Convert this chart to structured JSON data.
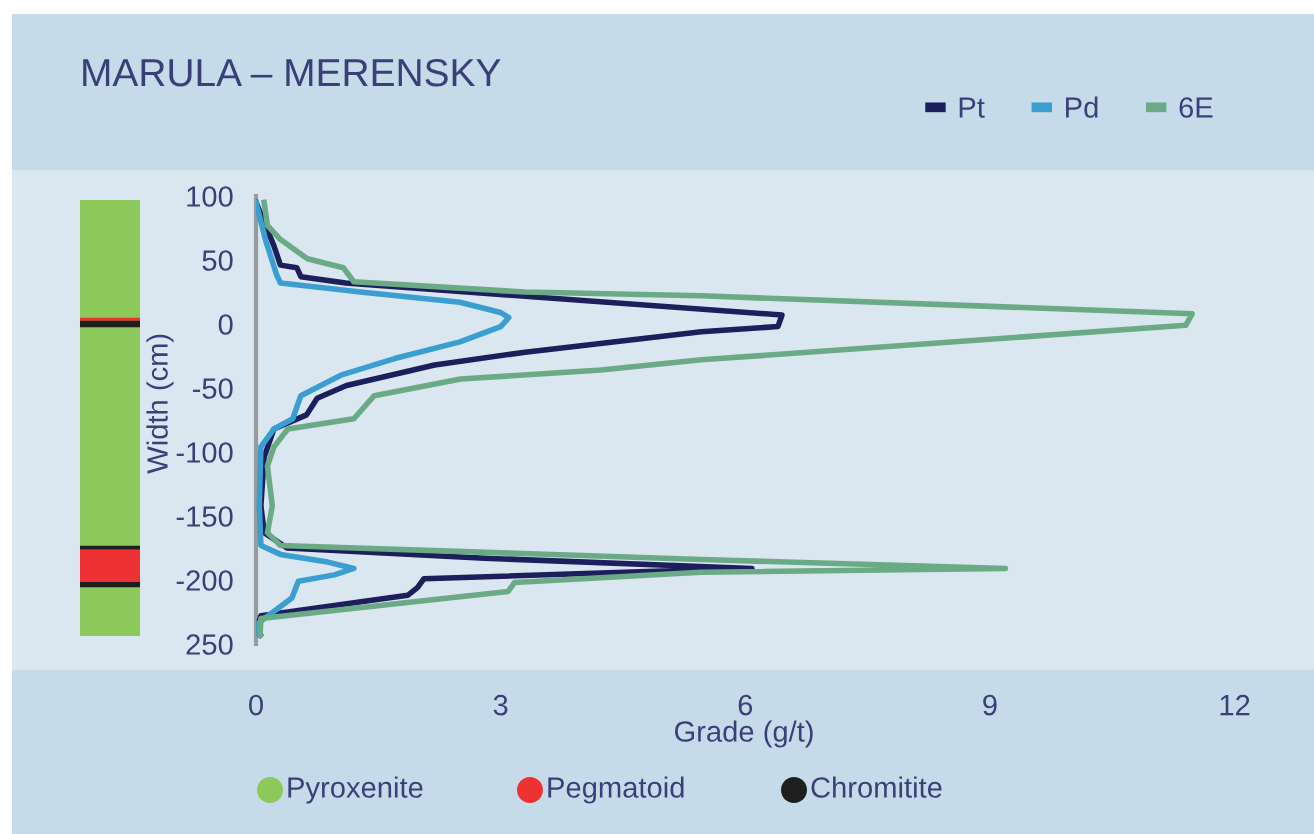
{
  "chart_data": [
    {
      "type": "line",
      "title": "MARULA – MERENSKY",
      "xlabel": "Grade (g/t)",
      "ylabel": "Width (cm)",
      "xlim": [
        0,
        12.9
      ],
      "xticks": [
        0,
        3,
        6,
        9,
        12
      ],
      "ylim": [
        -250,
        100
      ],
      "yticks": [
        100,
        50,
        0,
        -50,
        -100,
        -150,
        -200,
        {
          "value": -250,
          "label": "250"
        }
      ],
      "grid": false,
      "legend": "top right",
      "marker": "none",
      "line_style": "solid",
      "annotations": [
        "Pyroxenite",
        "Pegmatoid",
        "Chromitite"
      ],
      "series": [
        {
          "name": "Pt",
          "color": "#1d1f5c",
          "x": [
            0.0,
            0.22,
            0.3,
            0.5,
            0.55,
            1.1,
            6.45,
            6.4,
            5.46,
            3.3,
            2.19,
            1.11,
            0.75,
            0.62,
            0.22,
            0.1,
            0.06,
            0.1,
            0.38,
            2.8,
            6.08,
            5.46,
            2.06,
            1.98,
            1.86,
            0.06,
            0.0,
            0.05
          ],
          "values": [
            95,
            61,
            46,
            44,
            37,
            32,
            7,
            -2,
            -6,
            -22,
            -32,
            -48,
            -58,
            -71,
            -82,
            -104,
            -142,
            -163,
            -175,
            -183,
            -191,
            -192,
            -199,
            -206,
            -212,
            -228,
            -240,
            -243
          ]
        },
        {
          "name": "Pd",
          "color": "#3a9fd0",
          "x": [
            0.0,
            0.12,
            0.25,
            0.3,
            1.28,
            2.5,
            3.0,
            3.1,
            3.0,
            2.5,
            1.7,
            1.04,
            0.55,
            0.45,
            0.22,
            0.06,
            0.04,
            0.06,
            0.3,
            0.88,
            1.2,
            0.96,
            0.52,
            0.44,
            0.0,
            0.0,
            0.05
          ],
          "values": [
            95,
            65,
            39,
            32,
            25,
            17,
            9,
            5,
            -2,
            -14,
            -27,
            -40,
            -56,
            -74,
            -82,
            -96,
            -142,
            -173,
            -180,
            -186,
            -191,
            -196,
            -201,
            -214,
            -235,
            -240,
            -243
          ]
        },
        {
          "name": "6E",
          "color": "#6aab85",
          "x": [
            0.1,
            0.14,
            0.3,
            0.63,
            1.07,
            1.2,
            3.3,
            5.46,
            11.48,
            11.4,
            5.46,
            4.23,
            2.51,
            1.45,
            1.2,
            0.39,
            0.22,
            0.14,
            0.2,
            0.14,
            0.3,
            5.46,
            9.19,
            5.46,
            3.17,
            3.09,
            0.06,
            0.05
          ],
          "values": [
            95,
            77,
            66,
            51,
            44,
            33,
            25,
            22,
            8,
            -1,
            -28,
            -36,
            -43,
            -56,
            -74,
            -82,
            -96,
            -111,
            -142,
            -163,
            -173,
            -184,
            -191,
            -194,
            -202,
            -209,
            -230,
            -243
          ]
        }
      ]
    }
  ]
}
